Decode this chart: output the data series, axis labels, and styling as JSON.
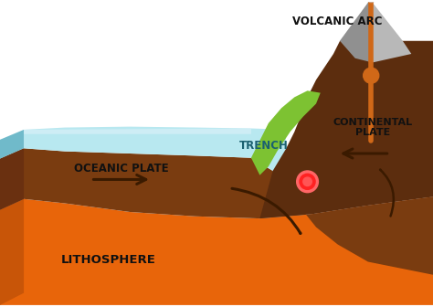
{
  "labels": {
    "volcanic_arc": "VOLCANIC ARC",
    "trench": "TRENCH",
    "oceanic_plate": "OCEANIC PLATE",
    "continental_plate": "CONTINENTAL\nPLATE",
    "lithosphere": "LITHOSPHERE"
  },
  "colors": {
    "background": "#ffffff",
    "orange_layer": "#e8650a",
    "orange_side": "#c85508",
    "brown_oceanic": "#7a3c10",
    "brown_continental": "#5c2d0e",
    "water_light": "#b8e8f0",
    "water_dark": "#80ccd8",
    "water_side": "#70baca",
    "green_land": "#7dc232",
    "volcano_gray_light": "#b8b8b8",
    "volcano_gray_dark": "#909090",
    "lava_tube": "#d06818",
    "lava_node": "#d06818",
    "magma_glow": "#ff3333",
    "magma_core": "#ff0000",
    "smoke": "#cccccc",
    "arrow_dark": "#3a1a00",
    "text_dark": "#111111",
    "text_trench": "#1a6070"
  },
  "figsize": [
    4.74,
    3.36
  ],
  "dpi": 100
}
